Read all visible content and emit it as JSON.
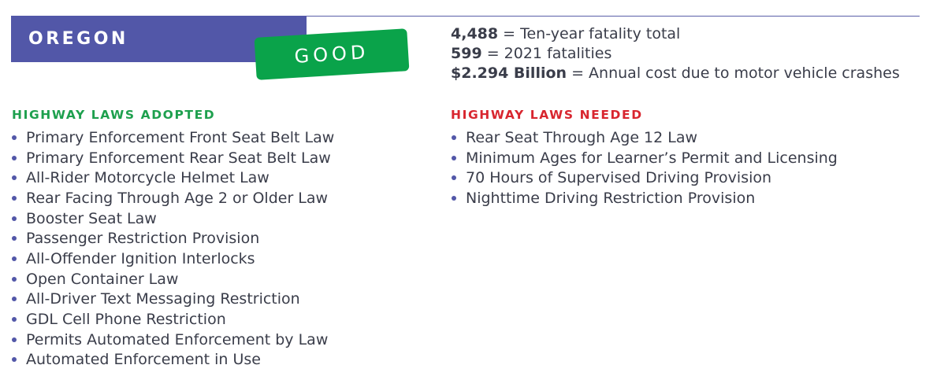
{
  "header": {
    "state": "OREGON",
    "rating": "GOOD"
  },
  "stats": [
    {
      "value": "4,488",
      "label": " = Ten-year fatality total"
    },
    {
      "value": "599",
      "label": " = 2021 fatalities"
    },
    {
      "value": "$2.294 Billion",
      "label": " = Annual cost due to motor vehicle crashes"
    }
  ],
  "adopted": {
    "title": "HIGHWAY LAWS ADOPTED",
    "items": [
      "Primary Enforcement Front Seat Belt Law",
      "Primary Enforcement Rear Seat Belt Law",
      "All-Rider Motorcycle Helmet Law",
      "Rear Facing Through Age 2 or Older Law",
      "Booster Seat Law",
      "Passenger Restriction Provision",
      "All-Offender Ignition Interlocks",
      "Open Container Law",
      "All-Driver Text Messaging Restriction",
      "GDL Cell Phone Restriction",
      "Permits Automated Enforcement by Law",
      "Automated Enforcement in Use"
    ]
  },
  "needed": {
    "title": "HIGHWAY LAWS NEEDED",
    "items": [
      "Rear Seat Through Age 12 Law",
      "Minimum Ages for Learner’s Permit and Licensing",
      "70 Hours of Supervised Driving Provision",
      "Nighttime Driving Restriction Provision"
    ]
  },
  "colors": {
    "banner": "#5257a8",
    "badge": "#0aa34a",
    "adopted_title": "#1ea04e",
    "needed_title": "#d8262f",
    "text": "#3a3d4a"
  }
}
